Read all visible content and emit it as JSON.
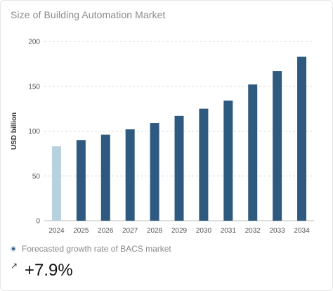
{
  "card": {
    "title": "Size of Building Automation Market"
  },
  "chart_data": {
    "type": "bar",
    "title": "Size of Building Automation Market",
    "ylabel": "USD billion",
    "xlabel": "",
    "categories": [
      "2024",
      "2025",
      "2026",
      "2027",
      "2028",
      "2029",
      "2030",
      "2031",
      "2032",
      "2033",
      "2034"
    ],
    "values": [
      83,
      90,
      96,
      102,
      109,
      117,
      125,
      134,
      152,
      167,
      183
    ],
    "ylim": [
      0,
      200
    ],
    "yticks": [
      0,
      50,
      100,
      150,
      200
    ],
    "grid": true,
    "colors": {
      "highlight": "#b8d1df",
      "bar": "#2f5a80",
      "grid": "#d9d9d9"
    },
    "highlight_index": 0
  },
  "legend": {
    "label": "Forecasted growth rate of BACS market"
  },
  "growth": {
    "icon": "arrow-up-right-icon",
    "arrow": "↗",
    "value": "+7.9%"
  }
}
